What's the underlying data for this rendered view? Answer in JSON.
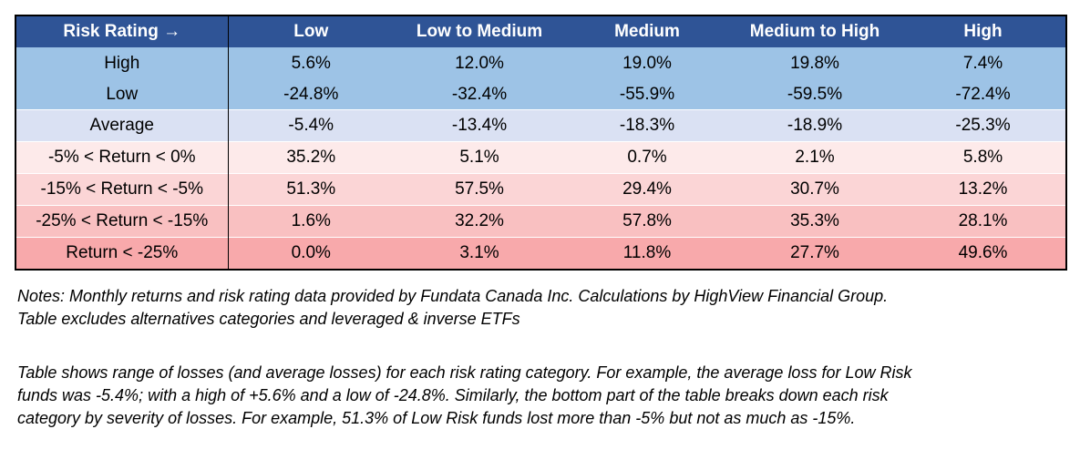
{
  "chart_data": {
    "type": "table",
    "columns": [
      "Risk Rating →",
      "Low",
      "Low to Medium",
      "Medium",
      "Medium to High",
      "High"
    ],
    "rows": [
      {
        "label": "High",
        "values": [
          "5.6%",
          "12.0%",
          "19.0%",
          "19.8%",
          "7.4%"
        ],
        "color": "#9dc3e6",
        "group_start": false
      },
      {
        "label": "Low",
        "values": [
          "-24.8%",
          "-32.4%",
          "-55.9%",
          "-59.5%",
          "-72.4%"
        ],
        "color": "#9dc3e6",
        "group_start": false
      },
      {
        "label": "Average",
        "values": [
          "-5.4%",
          "-13.4%",
          "-18.3%",
          "-18.9%",
          "-25.3%"
        ],
        "color": "#dae1f3",
        "group_start": true
      },
      {
        "label": "-5% < Return < 0%",
        "values": [
          "35.2%",
          "5.1%",
          "0.7%",
          "2.1%",
          "5.8%"
        ],
        "color": "#fdeaea",
        "group_start": true
      },
      {
        "label": "-15% < Return < -5%",
        "values": [
          "51.3%",
          "57.5%",
          "29.4%",
          "30.7%",
          "13.2%"
        ],
        "color": "#fbd5d6",
        "group_start": true
      },
      {
        "label": "-25% < Return < -15%",
        "values": [
          "1.6%",
          "32.2%",
          "57.8%",
          "35.3%",
          "28.1%"
        ],
        "color": "#f9c0c1",
        "group_start": true
      },
      {
        "label": "Return < -25%",
        "values": [
          "0.0%",
          "3.1%",
          "11.8%",
          "27.7%",
          "49.6%"
        ],
        "color": "#f8a9ab",
        "group_start": true
      }
    ],
    "header_color": "#2f5496",
    "header_text_color": "#ffffff"
  },
  "notes": {
    "line1": "Notes: Monthly returns and risk rating data provided by Fundata Canada Inc. Calculations by HighView Financial Group.",
    "line2": "Table excludes alternatives categories and leveraged & inverse ETFs",
    "para2_line1": "Table shows range of losses (and average losses) for each risk rating category. For example, the average loss for Low Risk",
    "para2_line2": "funds was -5.4%; with a high of +5.6% and a low of -24.8%. Similarly, the bottom part of the table breaks down each risk",
    "para2_line3": "category by severity of losses. For example, 51.3% of Low Risk funds lost more than -5% but not as much as -15%."
  }
}
